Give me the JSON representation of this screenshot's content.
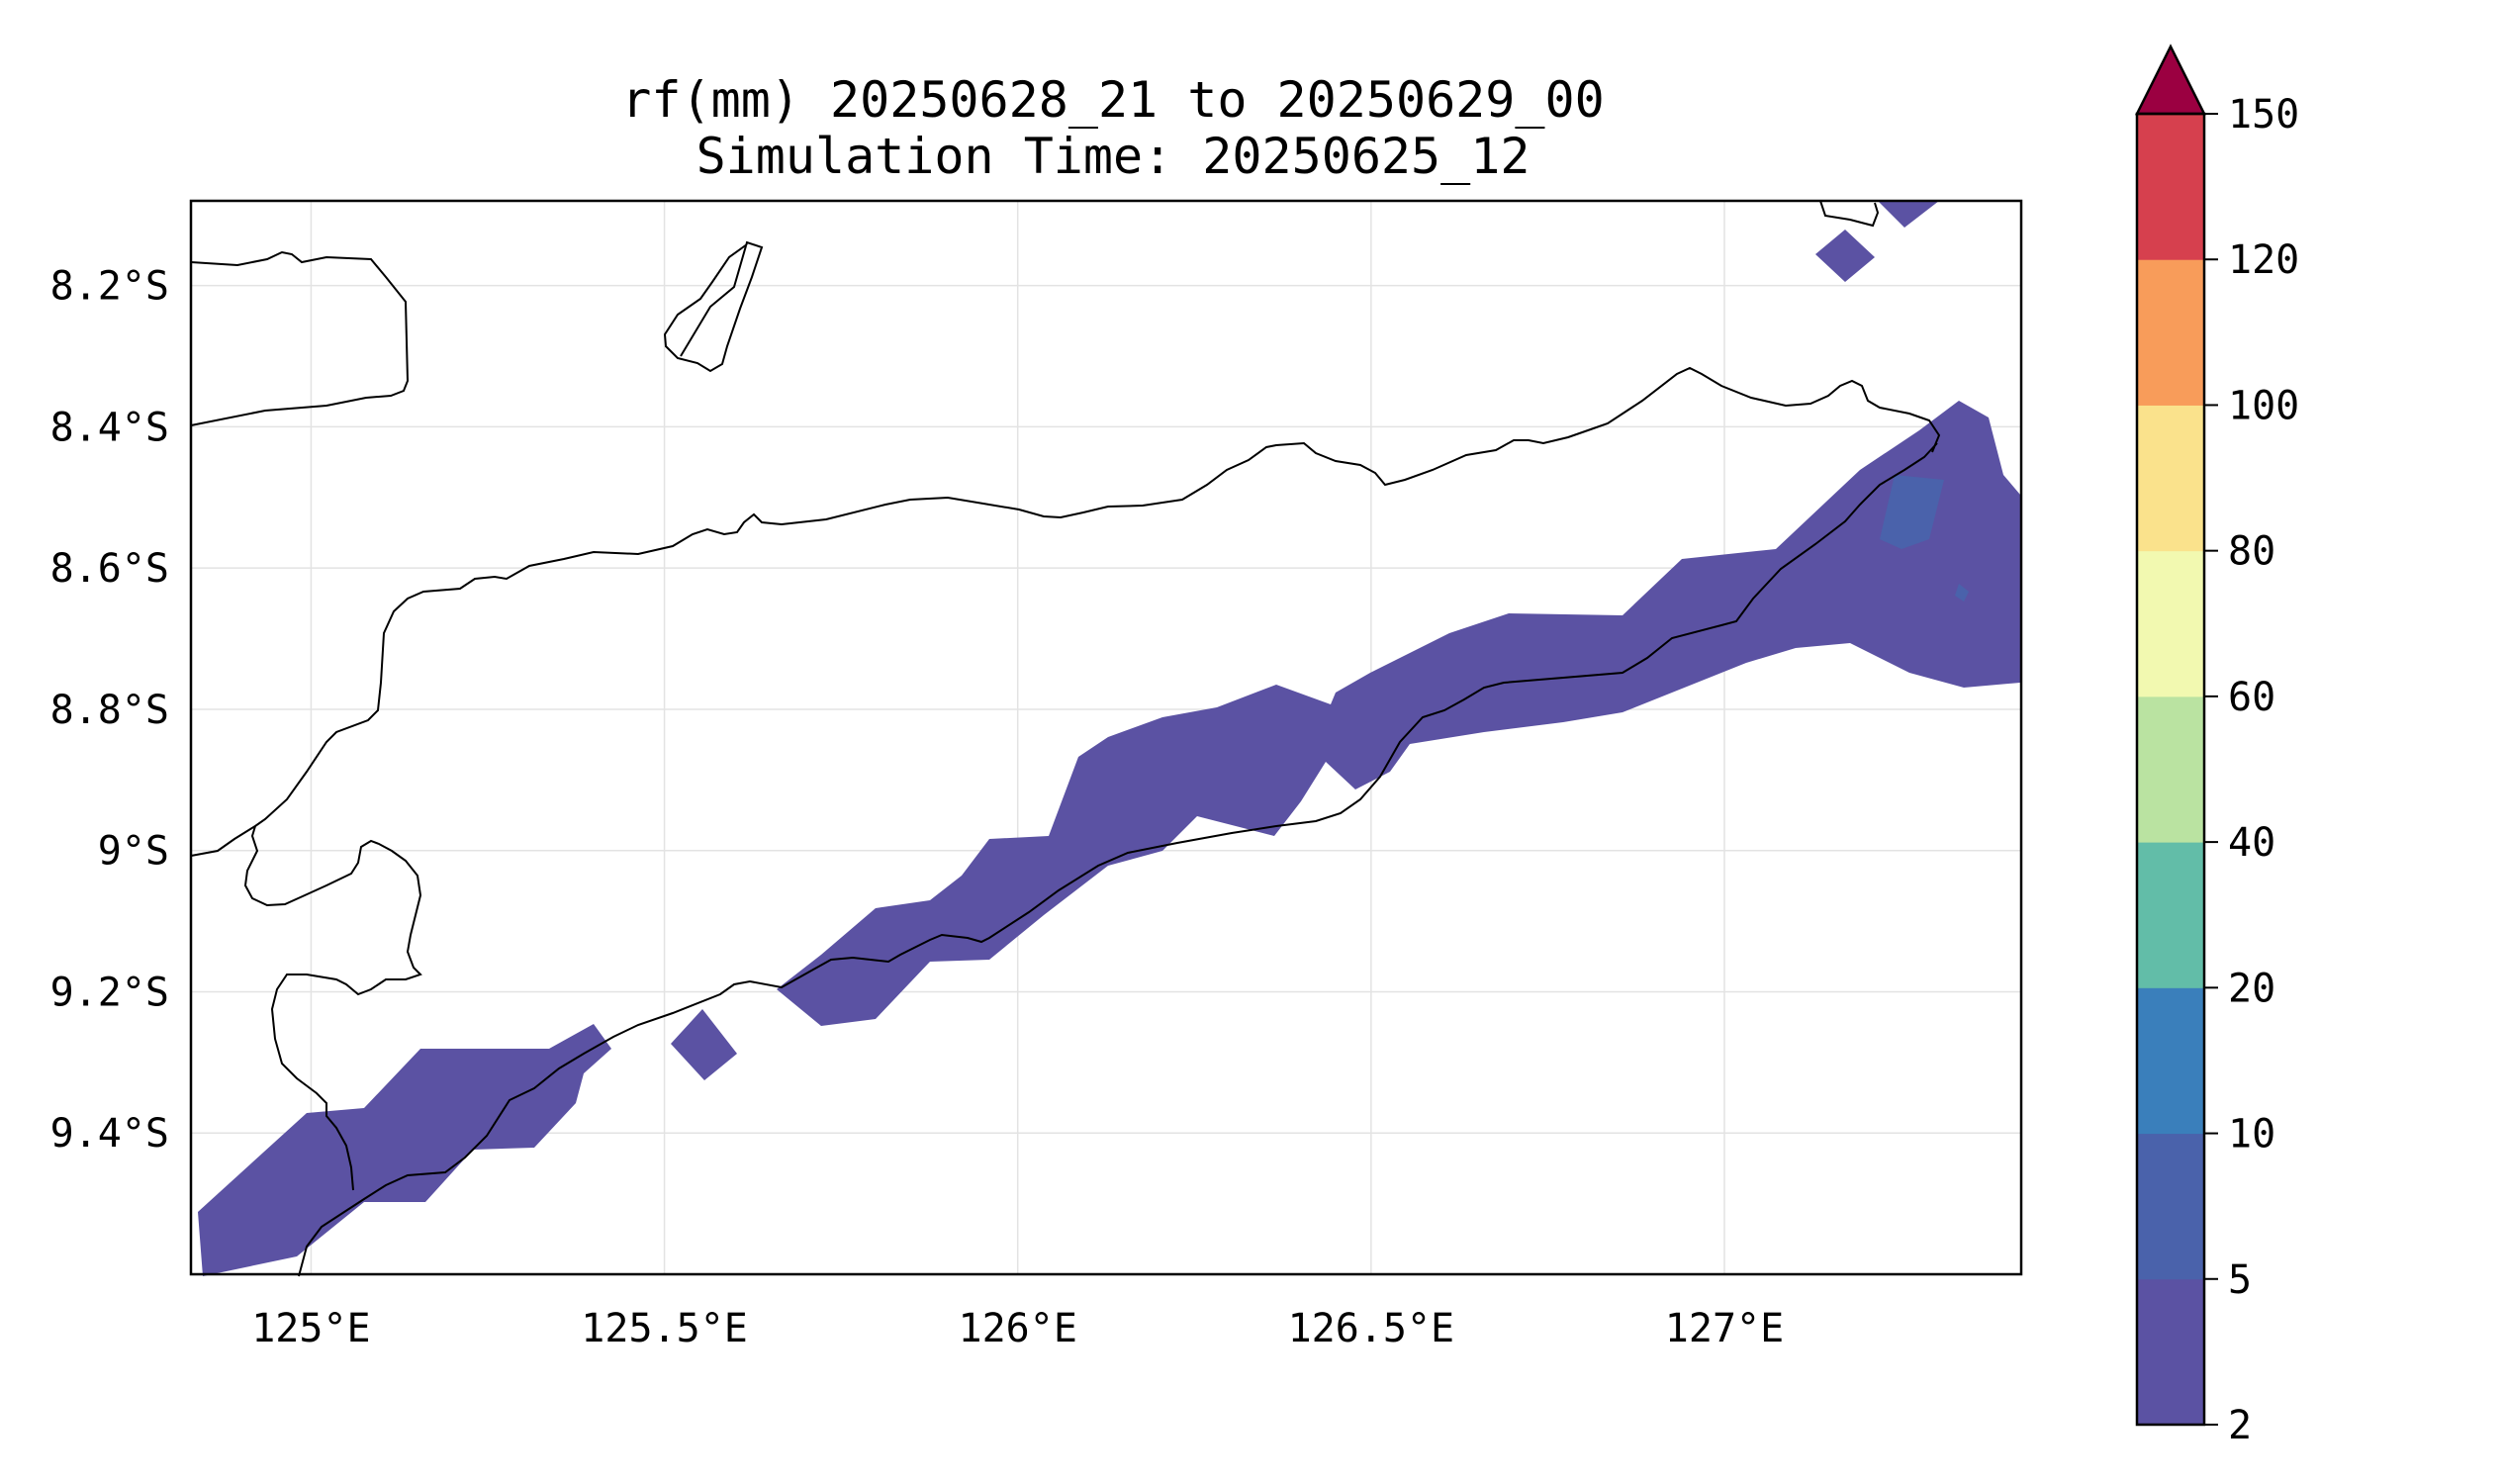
{
  "title": {
    "line1": "rf(mm) 20250628_21 to 20250629_00",
    "line2": "Simulation Time: 20250625_12"
  },
  "map": {
    "lon_range": [
      124.83,
      127.42
    ],
    "lat_range": [
      -9.6,
      -8.08
    ],
    "x_ticks": [
      {
        "value": 125.0,
        "label": "125°E"
      },
      {
        "value": 125.5,
        "label": "125.5°E"
      },
      {
        "value": 126.0,
        "label": "126°E"
      },
      {
        "value": 126.5,
        "label": "126.5°E"
      },
      {
        "value": 127.0,
        "label": "127°E"
      }
    ],
    "y_ticks": [
      {
        "value": -8.2,
        "label": "8.2°S"
      },
      {
        "value": -8.4,
        "label": "8.4°S"
      },
      {
        "value": -8.6,
        "label": "8.6°S"
      },
      {
        "value": -8.8,
        "label": "8.8°S"
      },
      {
        "value": -9.0,
        "label": "9°S"
      },
      {
        "value": -9.2,
        "label": "9.2°S"
      },
      {
        "value": -9.4,
        "label": "9.4°S"
      }
    ],
    "grid": true,
    "rain_color": "#5b52a3",
    "rain_color_5_10": "#4a62ab"
  },
  "colorbar": {
    "levels": [
      {
        "value": 2,
        "label": "2"
      },
      {
        "value": 5,
        "label": "5"
      },
      {
        "value": 10,
        "label": "10"
      },
      {
        "value": 20,
        "label": "20"
      },
      {
        "value": 40,
        "label": "40"
      },
      {
        "value": 60,
        "label": "60"
      },
      {
        "value": 80,
        "label": "80"
      },
      {
        "value": 100,
        "label": "100"
      },
      {
        "value": 120,
        "label": "120"
      },
      {
        "value": 150,
        "label": "150"
      }
    ],
    "colors": [
      "#5b52a3",
      "#4a62ab",
      "#3a7fbb",
      "#62bda8",
      "#bae3a1",
      "#f2f9b0",
      "#fae28c",
      "#f89c5a",
      "#d6404e"
    ],
    "extend_color": "#9b0041",
    "extend": "max"
  }
}
